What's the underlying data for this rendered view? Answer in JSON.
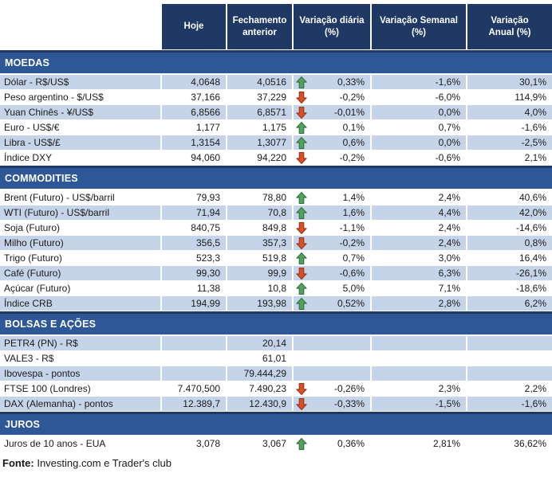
{
  "header": {
    "hoje": "Hoje",
    "fechamento": "Fechamento anterior",
    "variacao_diaria": "Variação diária (%)",
    "variacao_semanal": "Variação Semanal (%)",
    "variacao_anual": "Variação Anual (%)"
  },
  "sections": [
    {
      "title": "MOEDAS",
      "rows": [
        {
          "label": "Dólar - R$/US$",
          "hoje": "4,0648",
          "fechamento": "4,0516",
          "arrow": "up",
          "diaria": "0,33%",
          "semanal": "-1,6%",
          "anual": "30,1%"
        },
        {
          "label": "Peso argentino - $/US$",
          "hoje": "37,166",
          "fechamento": "37,229",
          "arrow": "down",
          "diaria": "-0,2%",
          "semanal": "-6,0%",
          "anual": "114,9%"
        },
        {
          "label": "Yuan Chinês - ¥/US$",
          "hoje": "6,8566",
          "fechamento": "6,8571",
          "arrow": "down",
          "diaria": "-0,01%",
          "semanal": "0,0%",
          "anual": "4,0%"
        },
        {
          "label": "Euro - US$/€",
          "hoje": "1,177",
          "fechamento": "1,175",
          "arrow": "up",
          "diaria": "0,1%",
          "semanal": "0,7%",
          "anual": "-1,6%"
        },
        {
          "label": "Libra - US$/£",
          "hoje": "1,3154",
          "fechamento": "1,3077",
          "arrow": "up",
          "diaria": "0,6%",
          "semanal": "0,0%",
          "anual": "-2,5%"
        },
        {
          "label": "Índice DXY",
          "hoje": "94,060",
          "fechamento": "94,220",
          "arrow": "down",
          "diaria": "-0,2%",
          "semanal": "-0,6%",
          "anual": "2,1%"
        }
      ]
    },
    {
      "title": "COMMODITIES",
      "rows": [
        {
          "label": "Brent (Futuro) - US$/barril",
          "hoje": "79,93",
          "fechamento": "78,80",
          "arrow": "up",
          "diaria": "1,4%",
          "semanal": "2,4%",
          "anual": "40,6%"
        },
        {
          "label": "WTI (Futuro) - US$/barril",
          "hoje": "71,94",
          "fechamento": "70,8",
          "arrow": "up",
          "diaria": "1,6%",
          "semanal": "4,4%",
          "anual": "42,0%"
        },
        {
          "label": "Soja (Futuro)",
          "hoje": "840,75",
          "fechamento": "849,8",
          "arrow": "down",
          "diaria": "-1,1%",
          "semanal": "2,4%",
          "anual": "-14,6%"
        },
        {
          "label": "Milho (Futuro)",
          "hoje": "356,5",
          "fechamento": "357,3",
          "arrow": "down",
          "diaria": "-0,2%",
          "semanal": "2,4%",
          "anual": "0,8%"
        },
        {
          "label": "Trigo (Futuro)",
          "hoje": "523,3",
          "fechamento": "519,8",
          "arrow": "up",
          "diaria": "0,7%",
          "semanal": "3,0%",
          "anual": "16,4%"
        },
        {
          "label": "Café (Futuro)",
          "hoje": "99,30",
          "fechamento": "99,9",
          "arrow": "down",
          "diaria": "-0,6%",
          "semanal": "6,3%",
          "anual": "-26,1%"
        },
        {
          "label": "Açúcar (Futuro)",
          "hoje": "11,38",
          "fechamento": "10,8",
          "arrow": "up",
          "diaria": "5,0%",
          "semanal": "7,1%",
          "anual": "-18,6%"
        },
        {
          "label": "Índice CRB",
          "hoje": "194,99",
          "fechamento": "193,98",
          "arrow": "up",
          "diaria": "0,52%",
          "semanal": "2,8%",
          "anual": "6,2%"
        }
      ]
    },
    {
      "title": "BOLSAS E AÇÕES",
      "rows": [
        {
          "label": "PETR4 (PN) - R$",
          "hoje": "",
          "fechamento": "20,14",
          "arrow": "none",
          "diaria": "",
          "semanal": "",
          "anual": ""
        },
        {
          "label": "VALE3 - R$",
          "hoje": "",
          "fechamento": "61,01",
          "arrow": "none",
          "diaria": "",
          "semanal": "",
          "anual": ""
        },
        {
          "label": "Ibovespa - pontos",
          "hoje": "",
          "fechamento": "79.444,29",
          "arrow": "none",
          "diaria": "",
          "semanal": "",
          "anual": ""
        },
        {
          "label": "FTSE 100 (Londres)",
          "hoje": "7.470,500",
          "fechamento": "7.490,23",
          "arrow": "down",
          "diaria": "-0,26%",
          "semanal": "2,3%",
          "anual": "2,2%"
        },
        {
          "label": "DAX (Alemanha) - pontos",
          "hoje": "12.389,7",
          "fechamento": "12.430,9",
          "arrow": "down",
          "diaria": "-0,33%",
          "semanal": "-1,5%",
          "anual": "-1,6%"
        }
      ]
    },
    {
      "title": "JUROS",
      "rows": [
        {
          "label": "Juros de 10 anos - EUA",
          "hoje": "3,078",
          "fechamento": "3,067",
          "arrow": "up",
          "diaria": "0,36%",
          "semanal": "2,81%",
          "anual": "36,62%"
        }
      ]
    }
  ],
  "footer": {
    "fonte_label": "Fonte:",
    "fonte_text": " Investing.com e Trader's club"
  },
  "colors": {
    "header_bg": "#1F3864",
    "section_bg": "#2E5797",
    "row_shaded": "#C6D4E9",
    "text": "#1A1A1A",
    "divider": "#FFFFFF",
    "arrow_up_fill": "#55A05C",
    "arrow_up_stroke": "#2E6F3E",
    "arrow_down_fill": "#D6502B",
    "arrow_down_stroke": "#943313"
  }
}
